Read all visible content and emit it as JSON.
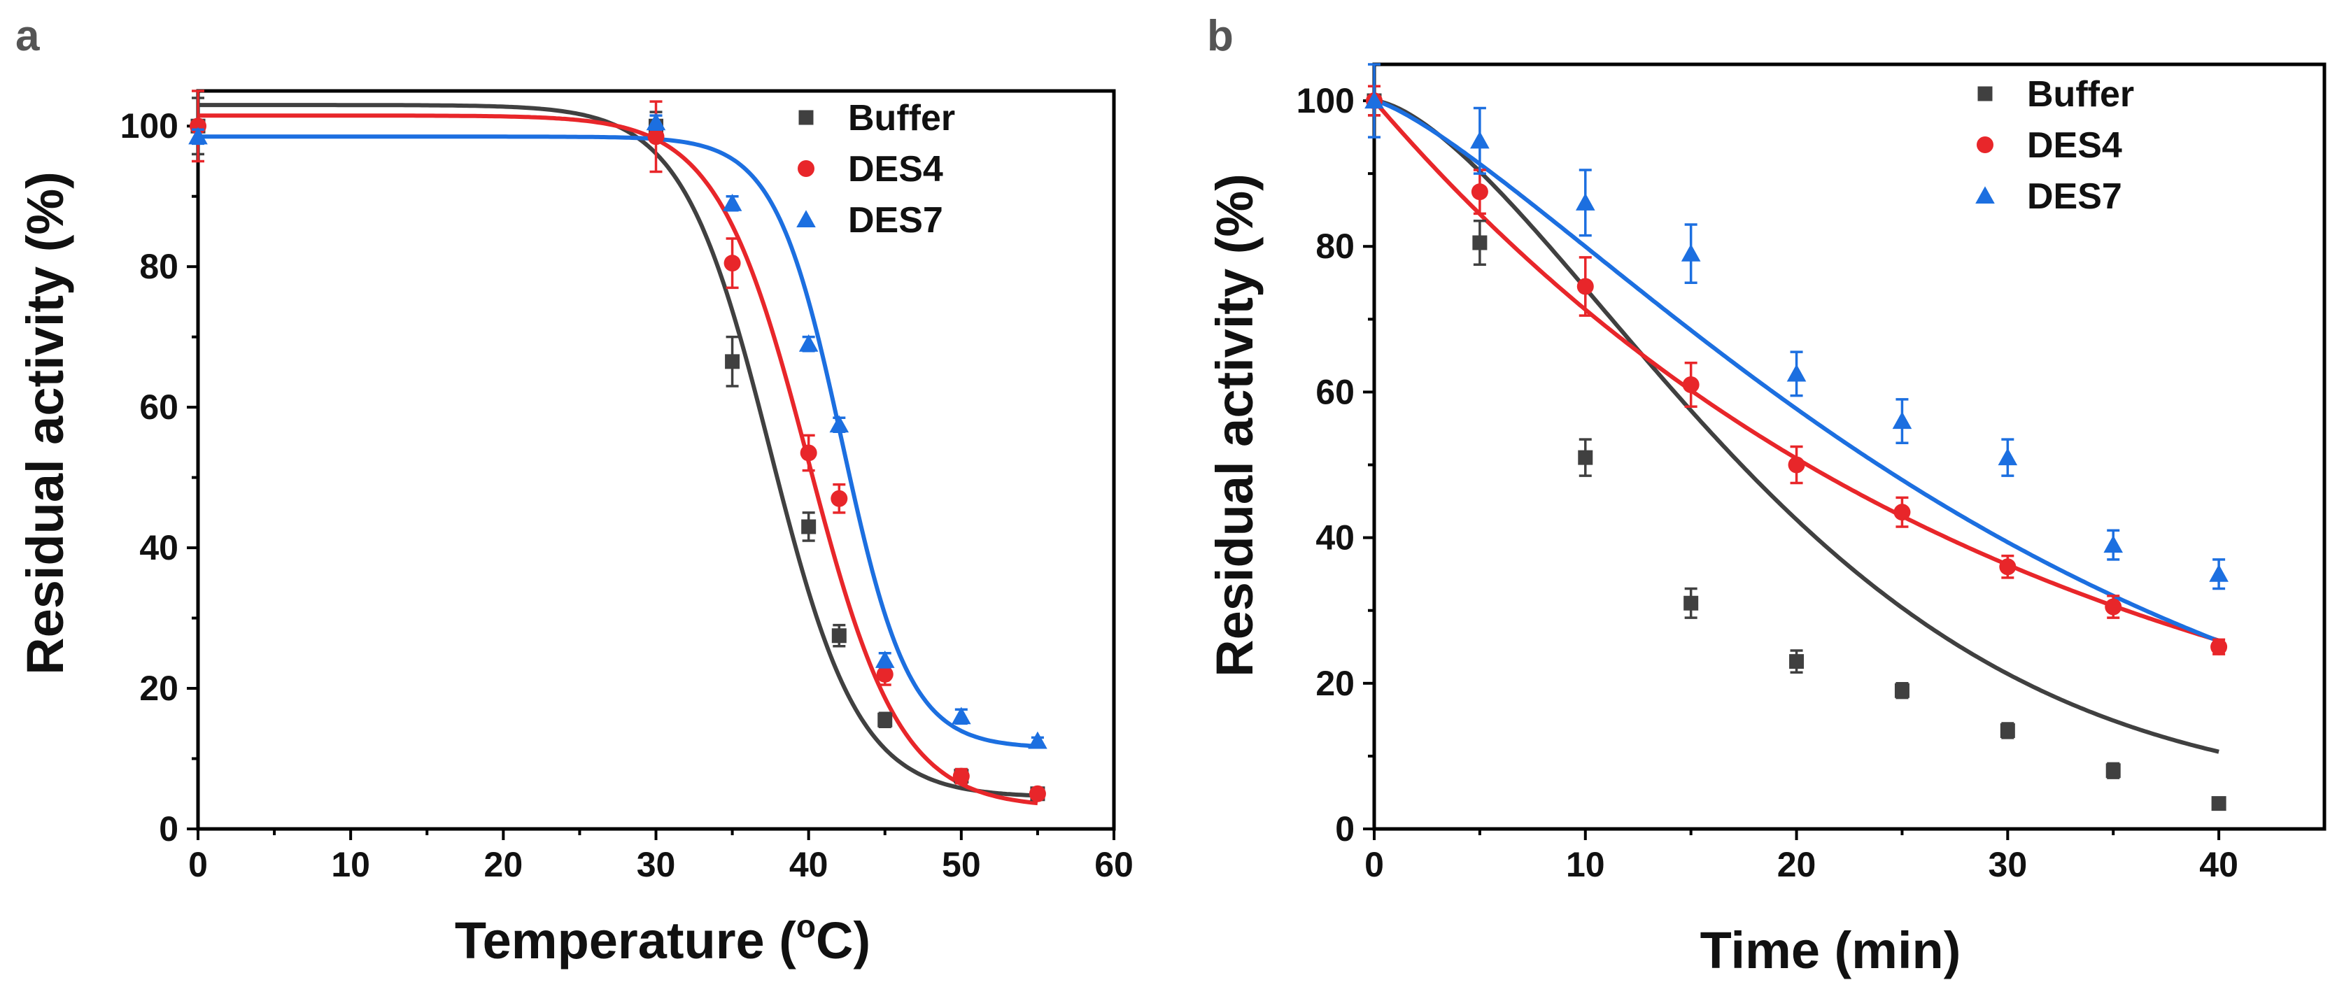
{
  "chart_data": [
    {
      "panel_label": "a",
      "type": "scatter",
      "xlabel_main": "Temperature (",
      "xlabel_sup": "o",
      "xlabel_end": "C)",
      "ylabel": "Residual activity (%)",
      "xlim": [
        0,
        60
      ],
      "ylim": [
        0,
        105
      ],
      "xticks": [
        0,
        10,
        20,
        30,
        40,
        50,
        60
      ],
      "yticks": [
        0,
        20,
        40,
        60,
        80,
        100
      ],
      "xtick_labels": [
        "0",
        "10",
        "20",
        "30",
        "40",
        "50",
        "60"
      ],
      "ytick_labels": [
        "0",
        "20",
        "40",
        "60",
        "80",
        "100"
      ],
      "legend_position": "top-right",
      "fit": "sigmoid",
      "series": [
        {
          "name": "Buffer",
          "color": "#404040",
          "marker": "square",
          "x": [
            0,
            30,
            35,
            40,
            42,
            45,
            50,
            55
          ],
          "y": [
            100,
            100,
            66.5,
            43,
            27.5,
            15.5,
            7.5,
            5
          ],
          "err": [
            4,
            2,
            3.5,
            2,
            1.5,
            1,
            1,
            0.5
          ],
          "fit_params": {
            "top": 103,
            "bottom": 4.5,
            "mid": 37.5,
            "slope": 2.9
          }
        },
        {
          "name": "DES4",
          "color": "#e8262a",
          "marker": "circle",
          "x": [
            0,
            30,
            35,
            40,
            42,
            45,
            50,
            55
          ],
          "y": [
            100,
            98.5,
            80.5,
            53.5,
            47,
            22,
            7.5,
            5
          ],
          "err": [
            5,
            5,
            3.5,
            2.5,
            2,
            1.5,
            1,
            0.5
          ],
          "fit_params": {
            "top": 101.5,
            "bottom": 3,
            "mid": 40,
            "slope": 3.0
          }
        },
        {
          "name": "DES7",
          "color": "#1c6fe0",
          "marker": "triangle",
          "x": [
            0,
            30,
            35,
            40,
            42,
            45,
            50,
            55
          ],
          "y": [
            98.5,
            100.5,
            89,
            69,
            57.5,
            24,
            16,
            12.5
          ],
          "err": [
            1,
            1,
            1,
            1,
            1,
            1,
            1,
            0.5
          ],
          "fit_params": {
            "top": 98.5,
            "bottom": 11.5,
            "mid": 42.2,
            "slope": 2.2
          }
        }
      ]
    },
    {
      "panel_label": "b",
      "type": "scatter",
      "xlabel": "Time (min)",
      "ylabel": "Residual activity (%)",
      "xlim": [
        0,
        45
      ],
      "ylim": [
        0,
        105
      ],
      "xticks": [
        0,
        10,
        20,
        30,
        40
      ],
      "yticks": [
        0,
        20,
        40,
        60,
        80,
        100
      ],
      "xtick_labels": [
        "0",
        "10",
        "20",
        "30",
        "40"
      ],
      "ytick_labels": [
        "0",
        "20",
        "40",
        "60",
        "80",
        "100"
      ],
      "legend_position": "top-right",
      "fit": "exponential",
      "series": [
        {
          "name": "Buffer",
          "color": "#404040",
          "marker": "square",
          "x": [
            0,
            5,
            10,
            15,
            20,
            25,
            30,
            35,
            40
          ],
          "y": [
            100,
            80.5,
            51,
            31,
            23,
            19,
            13.5,
            8,
            3.5
          ],
          "err": [
            2,
            3,
            2.5,
            2,
            1.5,
            1,
            1,
            1,
            0.5
          ],
          "fit_params": {
            "k": 0.0088,
            "n": 1.55,
            "bottom": 4
          }
        },
        {
          "name": "DES4",
          "color": "#e8262a",
          "marker": "circle",
          "x": [
            0,
            5,
            10,
            15,
            20,
            25,
            30,
            35,
            40
          ],
          "y": [
            100,
            87.5,
            74.5,
            61,
            50,
            43.5,
            36,
            30.5,
            25
          ],
          "err": [
            2,
            3,
            4,
            3,
            2.5,
            2,
            1.5,
            1.5,
            1
          ],
          "fit_params": {
            "k": 0.0338,
            "n": 1.0,
            "bottom": 0
          }
        },
        {
          "name": "DES7",
          "color": "#1c6fe0",
          "marker": "triangle",
          "x": [
            0,
            5,
            10,
            15,
            20,
            25,
            30,
            35,
            40
          ],
          "y": [
            100,
            94.5,
            86,
            79,
            62.5,
            56,
            51,
            39,
            35
          ],
          "err": [
            5,
            4.5,
            4.5,
            4,
            3,
            3,
            2.5,
            2,
            2
          ],
          "fit_params": {
            "k": 0.0112,
            "n": 1.3,
            "bottom": 0
          }
        }
      ]
    }
  ]
}
